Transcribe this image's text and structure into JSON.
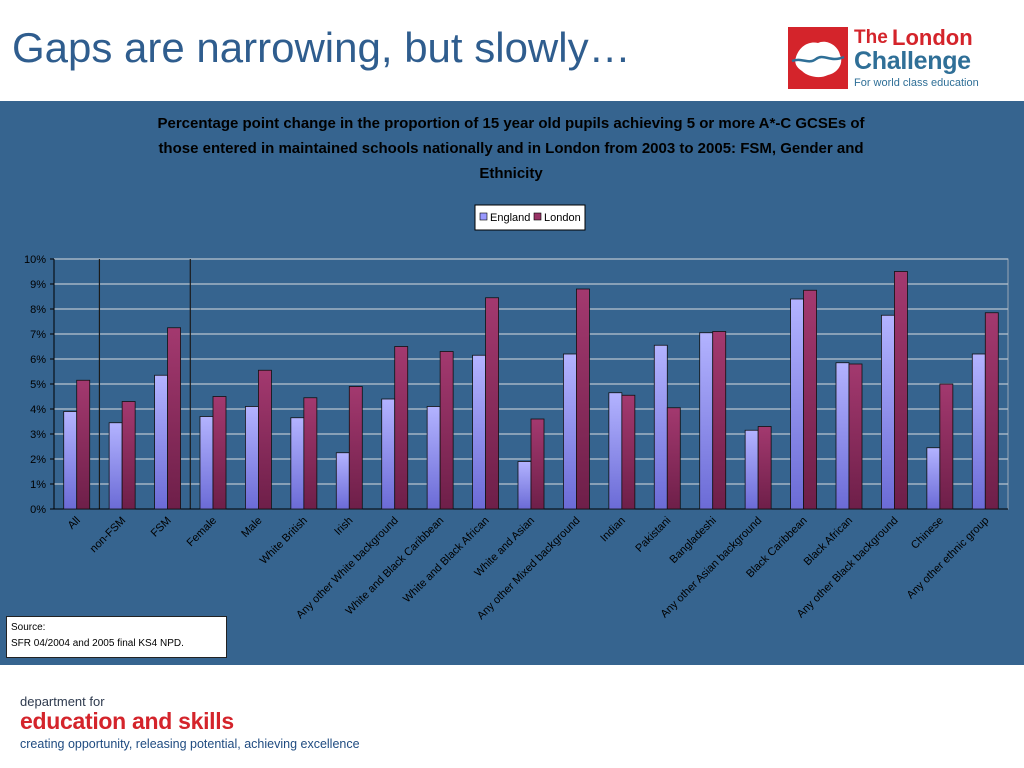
{
  "slide": {
    "title": "Gaps are narrowing, but slowly…",
    "logo": {
      "the": "The",
      "london": "London",
      "challenge": "Challenge",
      "tagline": "For world class education"
    },
    "source": {
      "label": "Source:",
      "text": "SFR 04/2004 and 2005 final KS4 NPD."
    },
    "footer": {
      "dept": "department for",
      "name": "education and skills",
      "tagline": "creating opportunity, releasing potential, achieving excellence"
    },
    "colors": {
      "panel": "#36648f",
      "england": "#9999ff",
      "london": "#993366",
      "brand_red": "#d4242b",
      "brand_blue": "#2f6f97"
    }
  },
  "chart_data": {
    "type": "bar",
    "title_lines": [
      "Percentage point change in the proportion of 15 year old pupils achieving 5 or more A*-C GCSEs of",
      "those entered in maintained schools nationally and in London from 2003 to 2005: FSM, Gender and",
      "Ethnicity"
    ],
    "categories": [
      "All",
      "non-FSM",
      "FSM",
      "Female",
      "Male",
      "White British",
      "Irish",
      "Any other White background",
      "White and Black Caribbean",
      "White and Black African",
      "White and Asian",
      "Any other Mixed background",
      "Indian",
      "Pakistani",
      "Bangladeshi",
      "Any other Asian background",
      "Black Caribbean",
      "Black African",
      "Any other Black background",
      "Chinese",
      "Any other ethnic group"
    ],
    "series": [
      {
        "name": "England",
        "values": [
          3.9,
          3.45,
          5.35,
          3.7,
          4.1,
          3.65,
          2.25,
          4.4,
          4.1,
          6.15,
          1.9,
          6.2,
          4.65,
          6.55,
          7.05,
          3.15,
          8.4,
          5.85,
          7.75,
          2.45,
          6.2
        ]
      },
      {
        "name": "London",
        "values": [
          5.15,
          4.3,
          7.25,
          4.5,
          5.55,
          4.45,
          4.9,
          6.5,
          6.3,
          8.45,
          3.6,
          8.8,
          4.55,
          4.05,
          7.1,
          3.3,
          8.75,
          5.8,
          9.5,
          5.0,
          7.85
        ]
      }
    ],
    "y_ticks": [
      "0%",
      "1%",
      "2%",
      "3%",
      "4%",
      "5%",
      "6%",
      "7%",
      "8%",
      "9%",
      "10%"
    ],
    "ylim": [
      0,
      10
    ],
    "grid": true,
    "legend_position": "top-center",
    "separators_after_categories": [
      0,
      2
    ]
  }
}
